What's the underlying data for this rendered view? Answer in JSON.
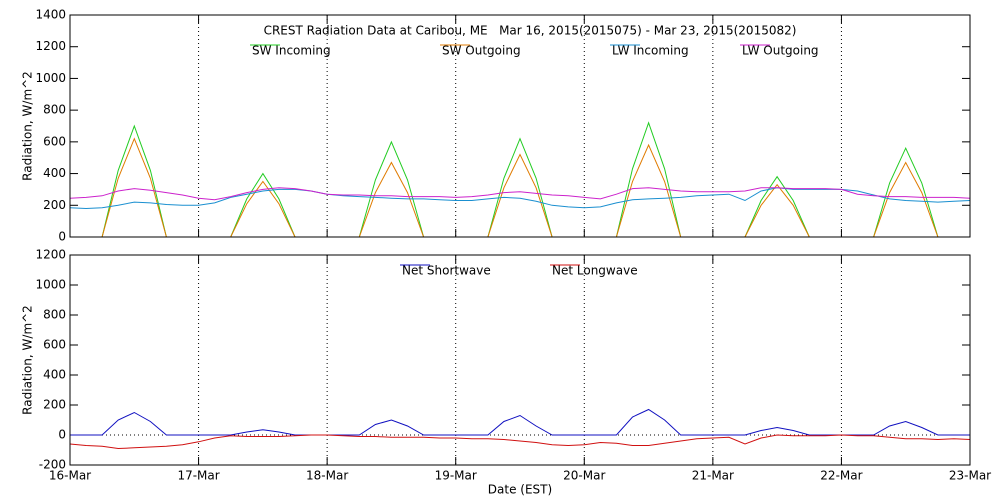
{
  "chart_data": [
    {
      "type": "line",
      "title": "CREST Radiation Data at Caribou, ME   Mar 16, 2015(2015075) - Mar 23, 2015(2015082)",
      "y_label": "Radiation, W/m^2",
      "ylim": [
        0,
        1400
      ],
      "yticks": [
        0,
        200,
        400,
        600,
        800,
        1000,
        1200,
        1400
      ],
      "xlim": [
        0,
        7
      ],
      "grid": "x",
      "x": [
        0,
        0.125,
        0.25,
        0.375,
        0.5,
        0.625,
        0.75,
        0.875,
        1,
        1.125,
        1.25,
        1.375,
        1.5,
        1.625,
        1.75,
        1.875,
        2,
        2.125,
        2.25,
        2.375,
        2.5,
        2.625,
        2.75,
        2.875,
        3,
        3.125,
        3.25,
        3.375,
        3.5,
        3.625,
        3.75,
        3.875,
        4,
        4.125,
        4.25,
        4.375,
        4.5,
        4.625,
        4.75,
        4.875,
        5,
        5.125,
        5.25,
        5.375,
        5.5,
        5.625,
        5.75,
        5.875,
        6,
        6.125,
        6.25,
        6.375,
        6.5,
        6.625,
        6.75,
        6.875,
        7
      ],
      "series": [
        {
          "name": "SW Incoming",
          "color": "#22cc22",
          "values": [
            0,
            0,
            0,
            420,
            700,
            420,
            0,
            0,
            0,
            0,
            0,
            240,
            400,
            240,
            0,
            0,
            0,
            0,
            0,
            360,
            600,
            360,
            0,
            0,
            0,
            0,
            0,
            370,
            620,
            370,
            0,
            0,
            0,
            0,
            0,
            430,
            720,
            430,
            0,
            0,
            0,
            0,
            0,
            230,
            380,
            230,
            0,
            0,
            0,
            0,
            0,
            340,
            560,
            340,
            0,
            0,
            0
          ]
        },
        {
          "name": "SW Outgoing",
          "color": "#e07b00",
          "values": [
            0,
            0,
            0,
            370,
            620,
            370,
            0,
            0,
            0,
            0,
            0,
            210,
            350,
            210,
            0,
            0,
            0,
            0,
            0,
            280,
            470,
            280,
            0,
            0,
            0,
            0,
            0,
            310,
            520,
            310,
            0,
            0,
            0,
            0,
            0,
            350,
            580,
            350,
            0,
            0,
            0,
            0,
            0,
            200,
            330,
            200,
            0,
            0,
            0,
            0,
            0,
            280,
            470,
            280,
            0,
            0,
            0
          ]
        },
        {
          "name": "LW Incoming",
          "color": "#1a8fd0",
          "values": [
            185,
            180,
            185,
            200,
            220,
            215,
            205,
            200,
            200,
            215,
            250,
            270,
            290,
            300,
            300,
            290,
            270,
            260,
            255,
            250,
            245,
            240,
            240,
            235,
            230,
            230,
            240,
            250,
            245,
            225,
            200,
            190,
            185,
            190,
            215,
            235,
            240,
            245,
            250,
            260,
            265,
            270,
            230,
            290,
            310,
            300,
            300,
            300,
            300,
            290,
            265,
            240,
            230,
            225,
            220,
            225,
            230
          ]
        },
        {
          "name": "LW Outgoing",
          "color": "#cc22cc",
          "values": [
            245,
            250,
            260,
            290,
            305,
            295,
            280,
            265,
            245,
            235,
            255,
            280,
            300,
            310,
            305,
            290,
            270,
            265,
            265,
            260,
            260,
            255,
            255,
            255,
            250,
            255,
            265,
            280,
            285,
            275,
            265,
            260,
            250,
            240,
            270,
            305,
            310,
            300,
            290,
            285,
            285,
            285,
            290,
            310,
            310,
            305,
            305,
            305,
            300,
            270,
            260,
            255,
            255,
            250,
            250,
            250,
            245
          ]
        }
      ]
    },
    {
      "type": "line",
      "y_label": "Radiation, W/m^2",
      "x_label": "Date (EST)",
      "ylim": [
        -200,
        1200
      ],
      "yticks": [
        -200,
        0,
        200,
        400,
        600,
        800,
        1000,
        1200
      ],
      "xlim": [
        0,
        7
      ],
      "grid": "x",
      "xticks": [
        {
          "value": 0,
          "label": "16-Mar"
        },
        {
          "value": 1,
          "label": "17-Mar"
        },
        {
          "value": 2,
          "label": "18-Mar"
        },
        {
          "value": 3,
          "label": "19-Mar"
        },
        {
          "value": 4,
          "label": "20-Mar"
        },
        {
          "value": 5,
          "label": "21-Mar"
        },
        {
          "value": 6,
          "label": "22-Mar"
        },
        {
          "value": 7,
          "label": "23-Mar"
        }
      ],
      "x": [
        0,
        0.125,
        0.25,
        0.375,
        0.5,
        0.625,
        0.75,
        0.875,
        1,
        1.125,
        1.25,
        1.375,
        1.5,
        1.625,
        1.75,
        1.875,
        2,
        2.125,
        2.25,
        2.375,
        2.5,
        2.625,
        2.75,
        2.875,
        3,
        3.125,
        3.25,
        3.375,
        3.5,
        3.625,
        3.75,
        3.875,
        4,
        4.125,
        4.25,
        4.375,
        4.5,
        4.625,
        4.75,
        4.875,
        5,
        5.125,
        5.25,
        5.375,
        5.5,
        5.625,
        5.75,
        5.875,
        6,
        6.125,
        6.25,
        6.375,
        6.5,
        6.625,
        6.75,
        6.875,
        7
      ],
      "series": [
        {
          "name": "Net Shortwave",
          "color": "#1010c0",
          "values": [
            0,
            0,
            0,
            100,
            150,
            90,
            0,
            0,
            0,
            0,
            0,
            20,
            35,
            20,
            0,
            0,
            0,
            0,
            0,
            70,
            100,
            60,
            0,
            0,
            0,
            0,
            0,
            90,
            130,
            60,
            0,
            0,
            0,
            0,
            0,
            120,
            170,
            100,
            0,
            0,
            0,
            0,
            0,
            30,
            50,
            30,
            0,
            0,
            0,
            0,
            0,
            60,
            90,
            50,
            0,
            0,
            0
          ]
        },
        {
          "name": "Net Longwave",
          "color": "#d01010",
          "values": [
            -60,
            -70,
            -75,
            -90,
            -85,
            -80,
            -75,
            -65,
            -45,
            -20,
            -5,
            -10,
            -10,
            -10,
            -5,
            0,
            0,
            -5,
            -10,
            -10,
            -15,
            -15,
            -15,
            -20,
            -20,
            -25,
            -25,
            -30,
            -40,
            -50,
            -65,
            -70,
            -65,
            -50,
            -55,
            -70,
            -70,
            -55,
            -40,
            -25,
            -20,
            -15,
            -60,
            -20,
            0,
            -5,
            -5,
            -5,
            0,
            -5,
            -5,
            -15,
            -25,
            -25,
            -30,
            -25,
            -30
          ]
        }
      ]
    }
  ]
}
